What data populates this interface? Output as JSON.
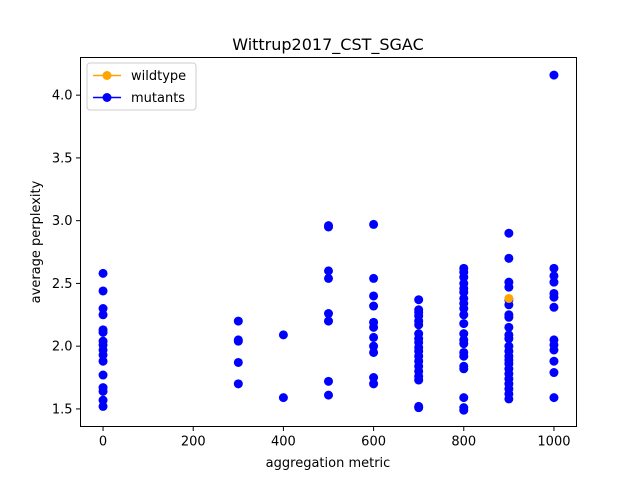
{
  "chart_data": {
    "type": "scatter",
    "title": "Wittrup2017_CST_SGAC",
    "xlabel": "aggregation metric",
    "ylabel": "average perplexity",
    "xlim": [
      -50,
      1050
    ],
    "ylim": [
      1.36,
      4.3
    ],
    "xticks": [
      0,
      200,
      400,
      600,
      800,
      1000
    ],
    "xtick_labels": [
      "0",
      "200",
      "400",
      "600",
      "800",
      "1000"
    ],
    "yticks": [
      1.5,
      2.0,
      2.5,
      3.0,
      3.5,
      4.0
    ],
    "ytick_labels": [
      "1.5",
      "2.0",
      "2.5",
      "3.0",
      "3.5",
      "4.0"
    ],
    "grid": false,
    "legend": {
      "placement": "upper-left",
      "entries": [
        {
          "label": "wildtype",
          "color": "#ffa500"
        },
        {
          "label": "mutants",
          "color": "#0000ff"
        }
      ]
    },
    "series": [
      {
        "name": "mutants",
        "color": "#0000ff",
        "points": [
          [
            0,
            2.58
          ],
          [
            0,
            2.44
          ],
          [
            0,
            2.3
          ],
          [
            0,
            2.25
          ],
          [
            0,
            2.13
          ],
          [
            0,
            2.11
          ],
          [
            0,
            2.04
          ],
          [
            0,
            2.01
          ],
          [
            0,
            1.97
          ],
          [
            0,
            1.93
          ],
          [
            0,
            1.88
          ],
          [
            0,
            1.77
          ],
          [
            0,
            1.67
          ],
          [
            0,
            1.64
          ],
          [
            0,
            1.57
          ],
          [
            0,
            1.52
          ],
          [
            300,
            2.2
          ],
          [
            300,
            2.05
          ],
          [
            300,
            2.04
          ],
          [
            300,
            1.87
          ],
          [
            300,
            1.7
          ],
          [
            400,
            2.09
          ],
          [
            400,
            1.59
          ],
          [
            500,
            2.96
          ],
          [
            500,
            2.95
          ],
          [
            500,
            2.6
          ],
          [
            500,
            2.54
          ],
          [
            500,
            2.26
          ],
          [
            500,
            2.2
          ],
          [
            500,
            1.72
          ],
          [
            500,
            1.61
          ],
          [
            600,
            2.97
          ],
          [
            600,
            2.54
          ],
          [
            600,
            2.4
          ],
          [
            600,
            2.32
          ],
          [
            600,
            2.19
          ],
          [
            600,
            2.15
          ],
          [
            600,
            2.07
          ],
          [
            600,
            2.0
          ],
          [
            600,
            1.95
          ],
          [
            600,
            1.75
          ],
          [
            600,
            1.7
          ],
          [
            700,
            2.37
          ],
          [
            700,
            2.29
          ],
          [
            700,
            2.27
          ],
          [
            700,
            2.24
          ],
          [
            700,
            2.2
          ],
          [
            700,
            2.17
          ],
          [
            700,
            2.1
          ],
          [
            700,
            2.06
          ],
          [
            700,
            2.03
          ],
          [
            700,
            1.99
          ],
          [
            700,
            1.96
          ],
          [
            700,
            1.92
          ],
          [
            700,
            1.88
          ],
          [
            700,
            1.84
          ],
          [
            700,
            1.8
          ],
          [
            700,
            1.76
          ],
          [
            700,
            1.73
          ],
          [
            700,
            1.52
          ],
          [
            700,
            1.51
          ],
          [
            800,
            2.62
          ],
          [
            800,
            2.59
          ],
          [
            800,
            2.55
          ],
          [
            800,
            2.5
          ],
          [
            800,
            2.46
          ],
          [
            800,
            2.43
          ],
          [
            800,
            2.38
          ],
          [
            800,
            2.34
          ],
          [
            800,
            2.3
          ],
          [
            800,
            2.25
          ],
          [
            800,
            2.18
          ],
          [
            800,
            2.1
          ],
          [
            800,
            2.05
          ],
          [
            800,
            2.02
          ],
          [
            800,
            1.95
          ],
          [
            800,
            1.92
          ],
          [
            800,
            1.84
          ],
          [
            800,
            1.82
          ],
          [
            800,
            1.59
          ],
          [
            800,
            1.51
          ],
          [
            800,
            1.49
          ],
          [
            900,
            2.9
          ],
          [
            900,
            2.7
          ],
          [
            900,
            2.51
          ],
          [
            900,
            2.47
          ],
          [
            900,
            2.37
          ],
          [
            900,
            2.33
          ],
          [
            900,
            2.25
          ],
          [
            900,
            2.23
          ],
          [
            900,
            2.15
          ],
          [
            900,
            2.09
          ],
          [
            900,
            2.06
          ],
          [
            900,
            2.0
          ],
          [
            900,
            1.96
          ],
          [
            900,
            1.92
          ],
          [
            900,
            1.89
          ],
          [
            900,
            1.86
          ],
          [
            900,
            1.82
          ],
          [
            900,
            1.78
          ],
          [
            900,
            1.74
          ],
          [
            900,
            1.7
          ],
          [
            900,
            1.66
          ],
          [
            900,
            1.62
          ],
          [
            900,
            1.58
          ],
          [
            1000,
            4.16
          ],
          [
            1000,
            2.62
          ],
          [
            1000,
            2.56
          ],
          [
            1000,
            2.51
          ],
          [
            1000,
            2.42
          ],
          [
            1000,
            2.39
          ],
          [
            1000,
            2.31
          ],
          [
            1000,
            2.05
          ],
          [
            1000,
            2.01
          ],
          [
            1000,
            1.97
          ],
          [
            1000,
            1.88
          ],
          [
            1000,
            1.79
          ],
          [
            1000,
            1.59
          ]
        ]
      },
      {
        "name": "wildtype",
        "color": "#ffa500",
        "points": [
          [
            900,
            2.38
          ]
        ]
      }
    ]
  }
}
